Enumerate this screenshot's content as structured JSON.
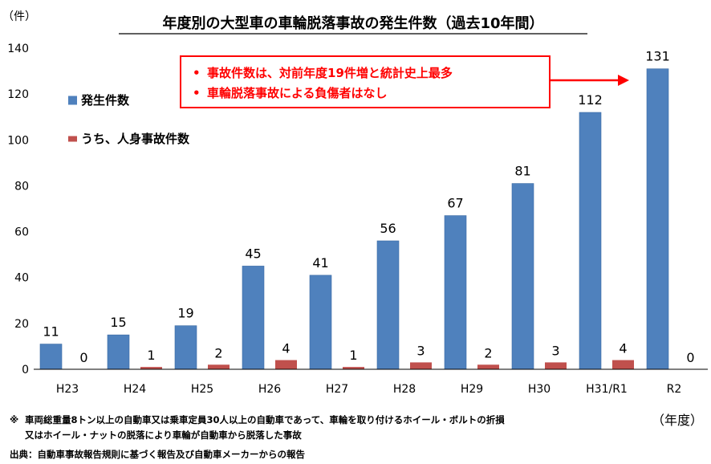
{
  "chart_data": {
    "type": "bar",
    "title": "年度別の大型車の車輪脱落事故の発生件数（過去10年間）",
    "y_unit": "（件）",
    "x_unit": "（年度）",
    "categories": [
      "H23",
      "H24",
      "H25",
      "H26",
      "H27",
      "H28",
      "H29",
      "H30",
      "H31/R1",
      "R2"
    ],
    "series": [
      {
        "name": "発生件数",
        "color": "#4f81bd",
        "values": [
          11,
          15,
          19,
          45,
          41,
          56,
          67,
          81,
          112,
          131
        ]
      },
      {
        "name": "うち、人身事故件数",
        "color": "#c0504d",
        "values": [
          0,
          1,
          2,
          4,
          1,
          3,
          2,
          3,
          4,
          0
        ]
      }
    ],
    "ylim": [
      0,
      140
    ],
    "yticks": [
      0,
      20,
      40,
      60,
      80,
      100,
      120,
      140
    ],
    "grid": false,
    "legend_position": "top-left",
    "annotation": {
      "lines": [
        "事故件数は、対前年度19件増と統計史上最多",
        "車輪脱落事故による負傷者はなし"
      ],
      "bullet": "•",
      "color": "#ff0000"
    }
  },
  "footnotes": {
    "note_mark": "※",
    "note_line1": "車両総重量8トン以上の自動車又は乗車定員30人以上の自動車であって、車輪を取り付けるホイール・ボルトの折損",
    "note_line2": "又はホイール・ナットの脱落により車輪が自動車から脱落した事故",
    "source": "出典：自動車事故報告規則に基づく報告及び自動車メーカーからの報告"
  }
}
